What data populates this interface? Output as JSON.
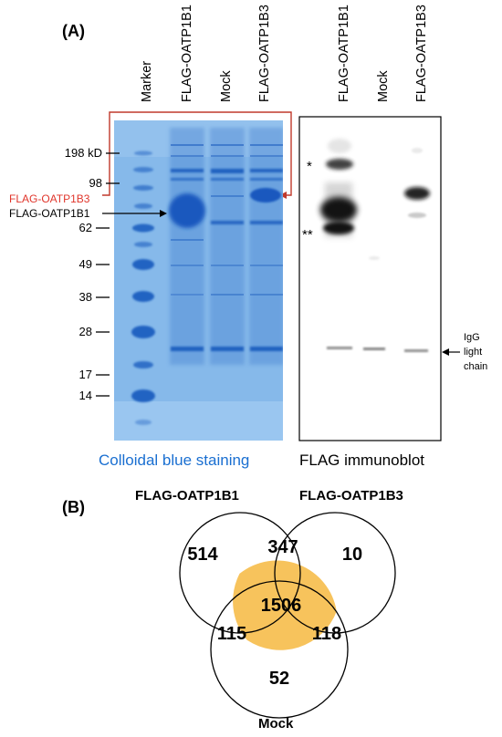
{
  "panel_a": {
    "label": "(A)",
    "gel_lane_labels": [
      "Marker",
      "FLAG-OATP1B1",
      "Mock",
      "FLAG-OATP1B3"
    ],
    "blot_lane_labels": [
      "FLAG-OATP1B1",
      "Mock",
      "FLAG-OATP1B3"
    ],
    "mw_markers": [
      "198 kD",
      "98",
      "62",
      "49",
      "38",
      "28",
      "17",
      "14"
    ],
    "band_annotations": {
      "oatp1b3": "FLAG-OATP1B3",
      "oatp1b1": "FLAG-OATP1B1",
      "single_star": "*",
      "double_star": "**",
      "igg_line1": "IgG",
      "igg_line2": "light",
      "igg_line3": "chain"
    },
    "gel_caption": "Colloidal blue staining",
    "blot_caption": "FLAG immunoblot",
    "colors": {
      "gel_background": "#7fb3e6",
      "gel_band": "#1f5fbf",
      "caption_blue": "#1a6fd1",
      "oatp1b3_red": "#e0352b",
      "bracket_red": "#c0392b"
    }
  },
  "panel_b": {
    "label": "(B)",
    "set_labels": {
      "oatp1b1": "FLAG-OATP1B1",
      "oatp1b3": "FLAG-OATP1B3",
      "mock": "Mock"
    },
    "counts": {
      "oatp1b1_only": "514",
      "oatp1b3_only": "10",
      "mock_only": "52",
      "oatp1b1_oatp1b3": "347",
      "oatp1b1_mock": "115",
      "oatp1b3_mock": "118",
      "all_three": "1506"
    },
    "colors": {
      "triple_overlap": "#f7c35c",
      "circle_stroke": "#000000"
    }
  }
}
